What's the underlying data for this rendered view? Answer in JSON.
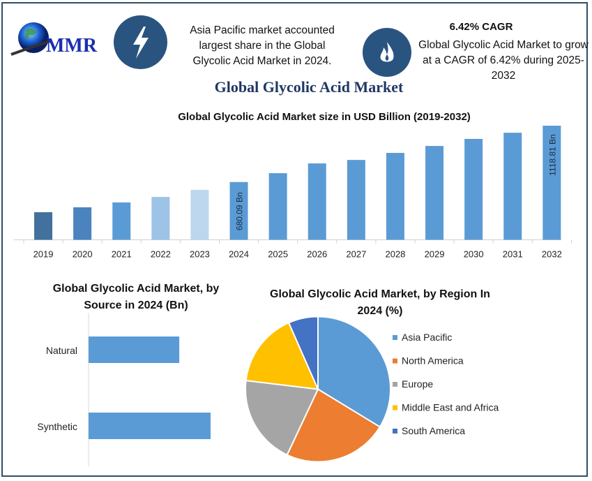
{
  "logo": {
    "text": "MMR"
  },
  "highlights": {
    "region_text": "Asia Pacific market accounted largest share in the Global Glycolic Acid Market in 2024.",
    "cagr_title": "6.42% CAGR",
    "cagr_text": "Global Glycolic Acid Market to grow at a CAGR of 6.42% during 2025-2032"
  },
  "icons": {
    "region": "lightning-icon",
    "cagr": "flame-icon"
  },
  "main_title": "Global Glycolic Acid Market",
  "colors": {
    "frame": "#2f4f67",
    "icon_bg": "#2a5480",
    "title": "#1f3864",
    "bar": "#5b9bd5"
  },
  "chart_data": [
    {
      "type": "bar",
      "title": "Global Glycolic Acid Market size in USD Billion (2019-2032)",
      "categories": [
        "2019",
        "2020",
        "2021",
        "2022",
        "2023",
        "2024",
        "2025",
        "2026",
        "2027",
        "2028",
        "2029",
        "2030",
        "2031",
        "2032"
      ],
      "values": [
        445,
        483,
        521,
        564,
        619,
        680.09,
        749,
        825,
        852,
        907,
        961,
        1016,
        1064,
        1118.81
      ],
      "bar_colors": [
        "#41719c",
        "#4a83bd",
        "#5b9bd5",
        "#9dc3e6",
        "#bdd7ee",
        "#5b9bd5",
        "#5b9bd5",
        "#5b9bd5",
        "#5b9bd5",
        "#5b9bd5",
        "#5b9bd5",
        "#5b9bd5",
        "#5b9bd5",
        "#5b9bd5"
      ],
      "data_labels": {
        "2024": "680.09 Bn",
        "2032": "1118.81 Bn"
      },
      "ylim": [
        230,
        1130
      ],
      "grid": false
    },
    {
      "type": "bar",
      "orientation": "horizontal",
      "title": "Global Glycolic Acid Market, by Source in 2024 (Bn)",
      "categories": [
        "Natural",
        "Synthetic"
      ],
      "values": [
        290,
        390
      ],
      "color": "#5b9bd5",
      "grid": false
    },
    {
      "type": "pie",
      "title": "Global Glycolic Acid Market, by Region In 2024 (%)",
      "labels": [
        "Asia Pacific",
        "North America",
        "Europe",
        "Middle East and Africa",
        "South America"
      ],
      "values": [
        33.7,
        23.3,
        19.9,
        16.5,
        6.6
      ],
      "colors": [
        "#5b9bd5",
        "#ed7d31",
        "#a5a5a5",
        "#ffc000",
        "#4472c4"
      ],
      "legend": "right"
    }
  ]
}
